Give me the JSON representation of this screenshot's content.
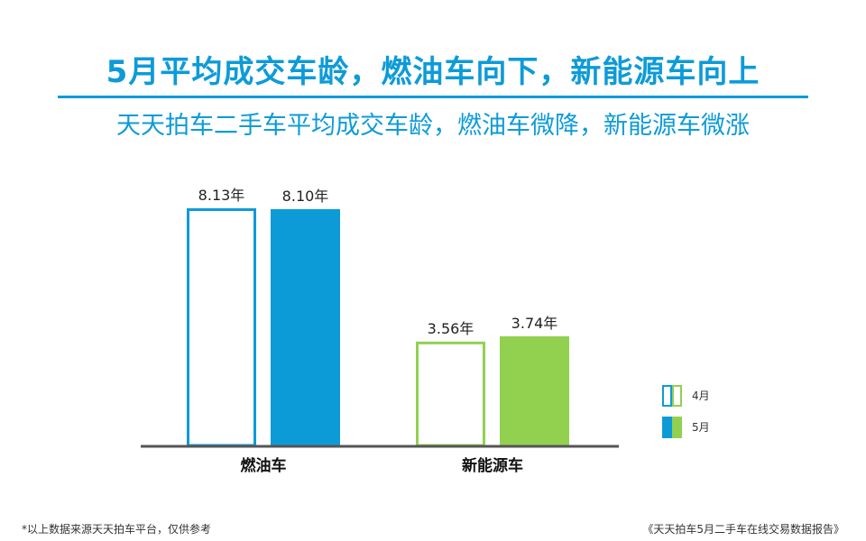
{
  "header": {
    "title": "5月平均成交车龄，燃油车向下，新能源车向上",
    "subtitle": "天天拍车二手车平均成交车龄，燃油车微降，新能源车微涨"
  },
  "footer": {
    "note": "*以上数据来源天天拍车平台，仅供参考",
    "source": "《天天拍车5月二手车在线交易数据报告》"
  },
  "chart_data": {
    "type": "bar",
    "categories": [
      "燃油车",
      "新能源车"
    ],
    "series": [
      {
        "name": "4月",
        "values": [
          8.13,
          3.56
        ],
        "labels": [
          "8.13年",
          "3.56年"
        ],
        "style": "outline"
      },
      {
        "name": "5月",
        "values": [
          8.1,
          3.74
        ],
        "labels": [
          "8.10年",
          "3.74年"
        ],
        "style": "filled"
      }
    ],
    "category_colors": [
      "#0d9bd8",
      "#92d050"
    ],
    "axis_color": "#555555",
    "ylim": [
      0,
      8.13
    ],
    "legend": "right"
  }
}
